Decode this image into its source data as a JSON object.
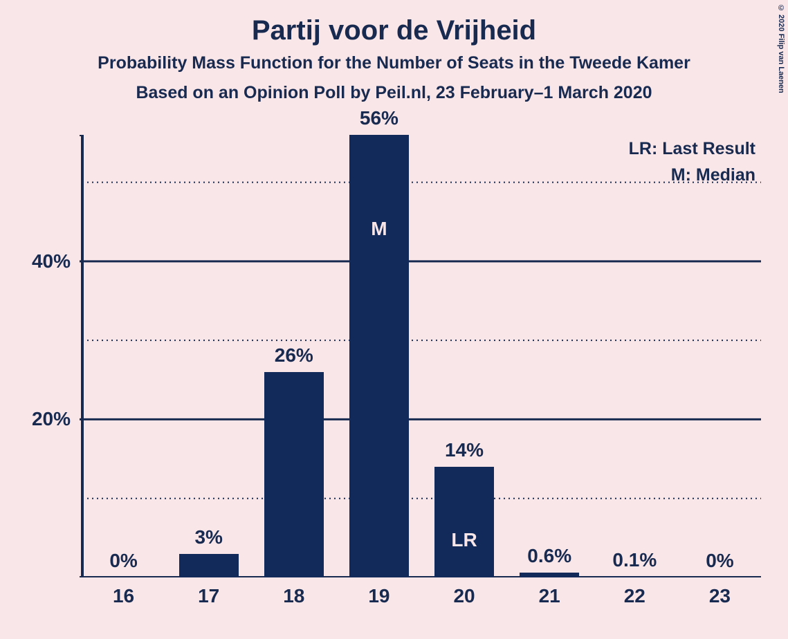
{
  "title": "Partij voor de Vrijheid",
  "subtitle1": "Probability Mass Function for the Number of Seats in the Tweede Kamer",
  "subtitle2": "Based on an Opinion Poll by Peil.nl, 23 February–1 March 2020",
  "copyright": "© 2020 Filip van Laenen",
  "legend": {
    "lr": "LR: Last Result",
    "m": "M: Median"
  },
  "chart": {
    "type": "bar",
    "background_color": "#f8e6e8",
    "bar_color": "#122a5a",
    "text_color": "#192a50",
    "axis_color": "#192a50",
    "grid_major_color": "#192a50",
    "grid_minor_style": "dotted",
    "title_fontsize": 40,
    "subtitle_fontsize": 25,
    "label_fontsize": 28,
    "bar_width": 0.7,
    "ylim": [
      0,
      56
    ],
    "y_major_ticks": [
      20,
      40
    ],
    "y_minor_ticks": [
      10,
      30,
      50
    ],
    "y_tick_labels": {
      "20": "20%",
      "40": "40%"
    },
    "categories": [
      "16",
      "17",
      "18",
      "19",
      "20",
      "21",
      "22",
      "23"
    ],
    "values": [
      0,
      3,
      26,
      56,
      14,
      0.6,
      0.1,
      0
    ],
    "value_labels": [
      "0%",
      "3%",
      "26%",
      "56%",
      "14%",
      "0.6%",
      "0.1%",
      "0%"
    ],
    "median_index": 3,
    "median_label": "M",
    "last_result_index": 4,
    "last_result_label": "LR"
  }
}
